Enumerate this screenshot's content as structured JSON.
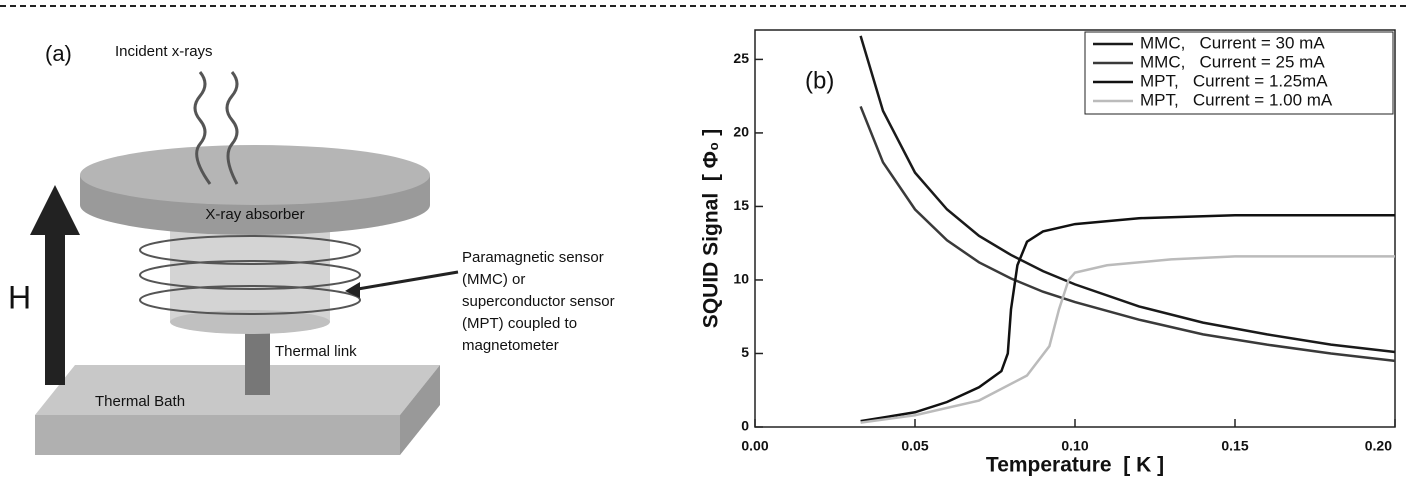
{
  "diagram": {
    "panel_label": "(a)",
    "incident": "Incident x-rays",
    "absorber": "X-ray absorber",
    "sensor_lines": [
      "Paramagnetic sensor",
      "(MMC) or",
      "superconductor sensor",
      "(MPT) coupled to",
      "magnetometer"
    ],
    "link": "Thermal link",
    "bath": "Thermal Bath",
    "field": "H"
  },
  "chart_data": {
    "type": "line",
    "annotation": "(b)",
    "xlabel": "Temperature  [ K ]",
    "ylabel": "SQUID Signal  [ Φ₀ ]",
    "xlim": [
      0,
      0.2
    ],
    "ylim": [
      0,
      27
    ],
    "xticks": [
      {
        "value": 0,
        "label": "0.00"
      },
      0.05,
      {
        "value": 0.1,
        "label": "0.10"
      },
      0.15,
      {
        "value": 0.2,
        "label": "0.20"
      }
    ],
    "yticks": [
      0,
      5,
      10,
      15,
      20,
      25
    ],
    "legend": "top-right",
    "series": [
      {
        "name": "MMC,   Current = 30 mA",
        "color": "#1a1a1a",
        "x": [
          0.033,
          0.04,
          0.05,
          0.06,
          0.07,
          0.08,
          0.09,
          0.1,
          0.12,
          0.14,
          0.16,
          0.18,
          0.2
        ],
        "values": [
          26.6,
          21.5,
          17.3,
          14.8,
          13.0,
          11.7,
          10.6,
          9.7,
          8.2,
          7.1,
          6.3,
          5.6,
          5.1
        ]
      },
      {
        "name": "MMC,   Current = 25 mA",
        "color": "#3a3a3a",
        "x": [
          0.033,
          0.04,
          0.05,
          0.06,
          0.07,
          0.08,
          0.09,
          0.1,
          0.12,
          0.14,
          0.16,
          0.18,
          0.2
        ],
        "values": [
          21.8,
          18.0,
          14.8,
          12.7,
          11.2,
          10.1,
          9.2,
          8.5,
          7.3,
          6.3,
          5.6,
          5.0,
          4.5
        ]
      },
      {
        "name": "MPT,   Current = 1.25mA",
        "color": "#111111",
        "x": [
          0.033,
          0.05,
          0.06,
          0.07,
          0.077,
          0.079,
          0.08,
          0.082,
          0.085,
          0.09,
          0.1,
          0.12,
          0.15,
          0.2
        ],
        "values": [
          0.4,
          1.0,
          1.7,
          2.7,
          3.8,
          5.0,
          8.0,
          11.0,
          12.6,
          13.3,
          13.8,
          14.2,
          14.4,
          14.4
        ]
      },
      {
        "name": "MPT,   Current = 1.00 mA",
        "color": "#bbbbbb",
        "x": [
          0.033,
          0.05,
          0.07,
          0.085,
          0.092,
          0.095,
          0.098,
          0.1,
          0.11,
          0.13,
          0.15,
          0.2
        ],
        "values": [
          0.3,
          0.8,
          1.8,
          3.5,
          5.5,
          8.0,
          10.0,
          10.5,
          11.0,
          11.4,
          11.6,
          11.6
        ]
      }
    ]
  }
}
